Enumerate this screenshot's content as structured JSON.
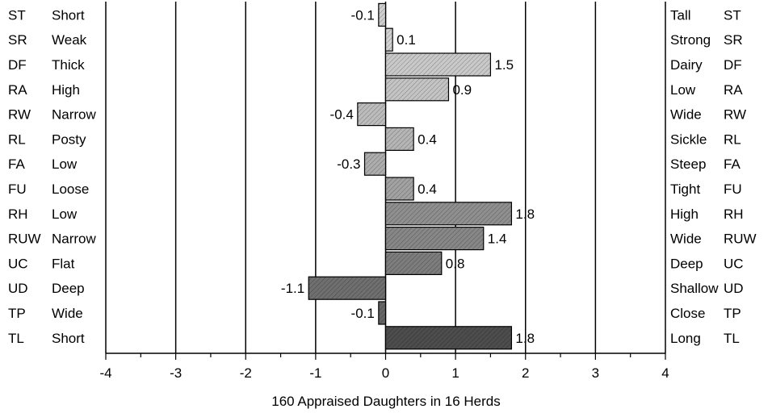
{
  "chart_data": {
    "type": "bar",
    "orientation": "horizontal",
    "xlabel": "160 Appraised Daughters in 16 Herds",
    "xlim": [
      -4,
      4
    ],
    "x_ticks": [
      "-4",
      "-3",
      "-2",
      "-1",
      "0",
      "1",
      "2",
      "3",
      "4"
    ],
    "grid": "vertical lines at integer values",
    "rows": [
      {
        "code": "ST",
        "low_label": "Short",
        "high_label": "Tall",
        "value": -0.1,
        "value_label": "-0.1",
        "color": "#cfcfcf"
      },
      {
        "code": "SR",
        "low_label": "Weak",
        "high_label": "Strong",
        "value": 0.1,
        "value_label": "0.1",
        "color": "#d2d2d2"
      },
      {
        "code": "DF",
        "low_label": "Thick",
        "high_label": "Dairy",
        "value": 1.5,
        "value_label": "1.5",
        "color": "#c9c9c9"
      },
      {
        "code": "RA",
        "low_label": "High",
        "high_label": "Low",
        "value": 0.9,
        "value_label": "0.9",
        "color": "#c4c4c4"
      },
      {
        "code": "RW",
        "low_label": "Narrow",
        "high_label": "Wide",
        "value": -0.4,
        "value_label": "-0.4",
        "color": "#bcbcbc"
      },
      {
        "code": "RL",
        "low_label": "Posty",
        "high_label": "Sickle",
        "value": 0.4,
        "value_label": "0.4",
        "color": "#b5b5b5"
      },
      {
        "code": "FA",
        "low_label": "Low",
        "high_label": "Steep",
        "value": -0.3,
        "value_label": "-0.3",
        "color": "#adadad"
      },
      {
        "code": "FU",
        "low_label": "Loose",
        "high_label": "Tight",
        "value": 0.4,
        "value_label": "0.4",
        "color": "#a2a2a2"
      },
      {
        "code": "RH",
        "low_label": "Low",
        "high_label": "High",
        "value": 1.8,
        "value_label": "1.8",
        "color": "#8f8f8f"
      },
      {
        "code": "RUW",
        "low_label": "Narrow",
        "high_label": "Wide",
        "value": 1.4,
        "value_label": "1.4",
        "color": "#878787"
      },
      {
        "code": "UC",
        "low_label": "Flat",
        "high_label": "Deep",
        "value": 0.8,
        "value_label": "0.8",
        "color": "#7d7d7d"
      },
      {
        "code": "UD",
        "low_label": "Deep",
        "high_label": "Shallow",
        "value": -1.1,
        "value_label": "-1.1",
        "color": "#6f6f6f"
      },
      {
        "code": "TP",
        "low_label": "Wide",
        "high_label": "Close",
        "value": -0.1,
        "value_label": "-0.1",
        "color": "#666666"
      },
      {
        "code": "TL",
        "low_label": "Short",
        "high_label": "Long",
        "value": 1.8,
        "value_label": "1.8",
        "color": "#4d4d4d"
      }
    ]
  }
}
